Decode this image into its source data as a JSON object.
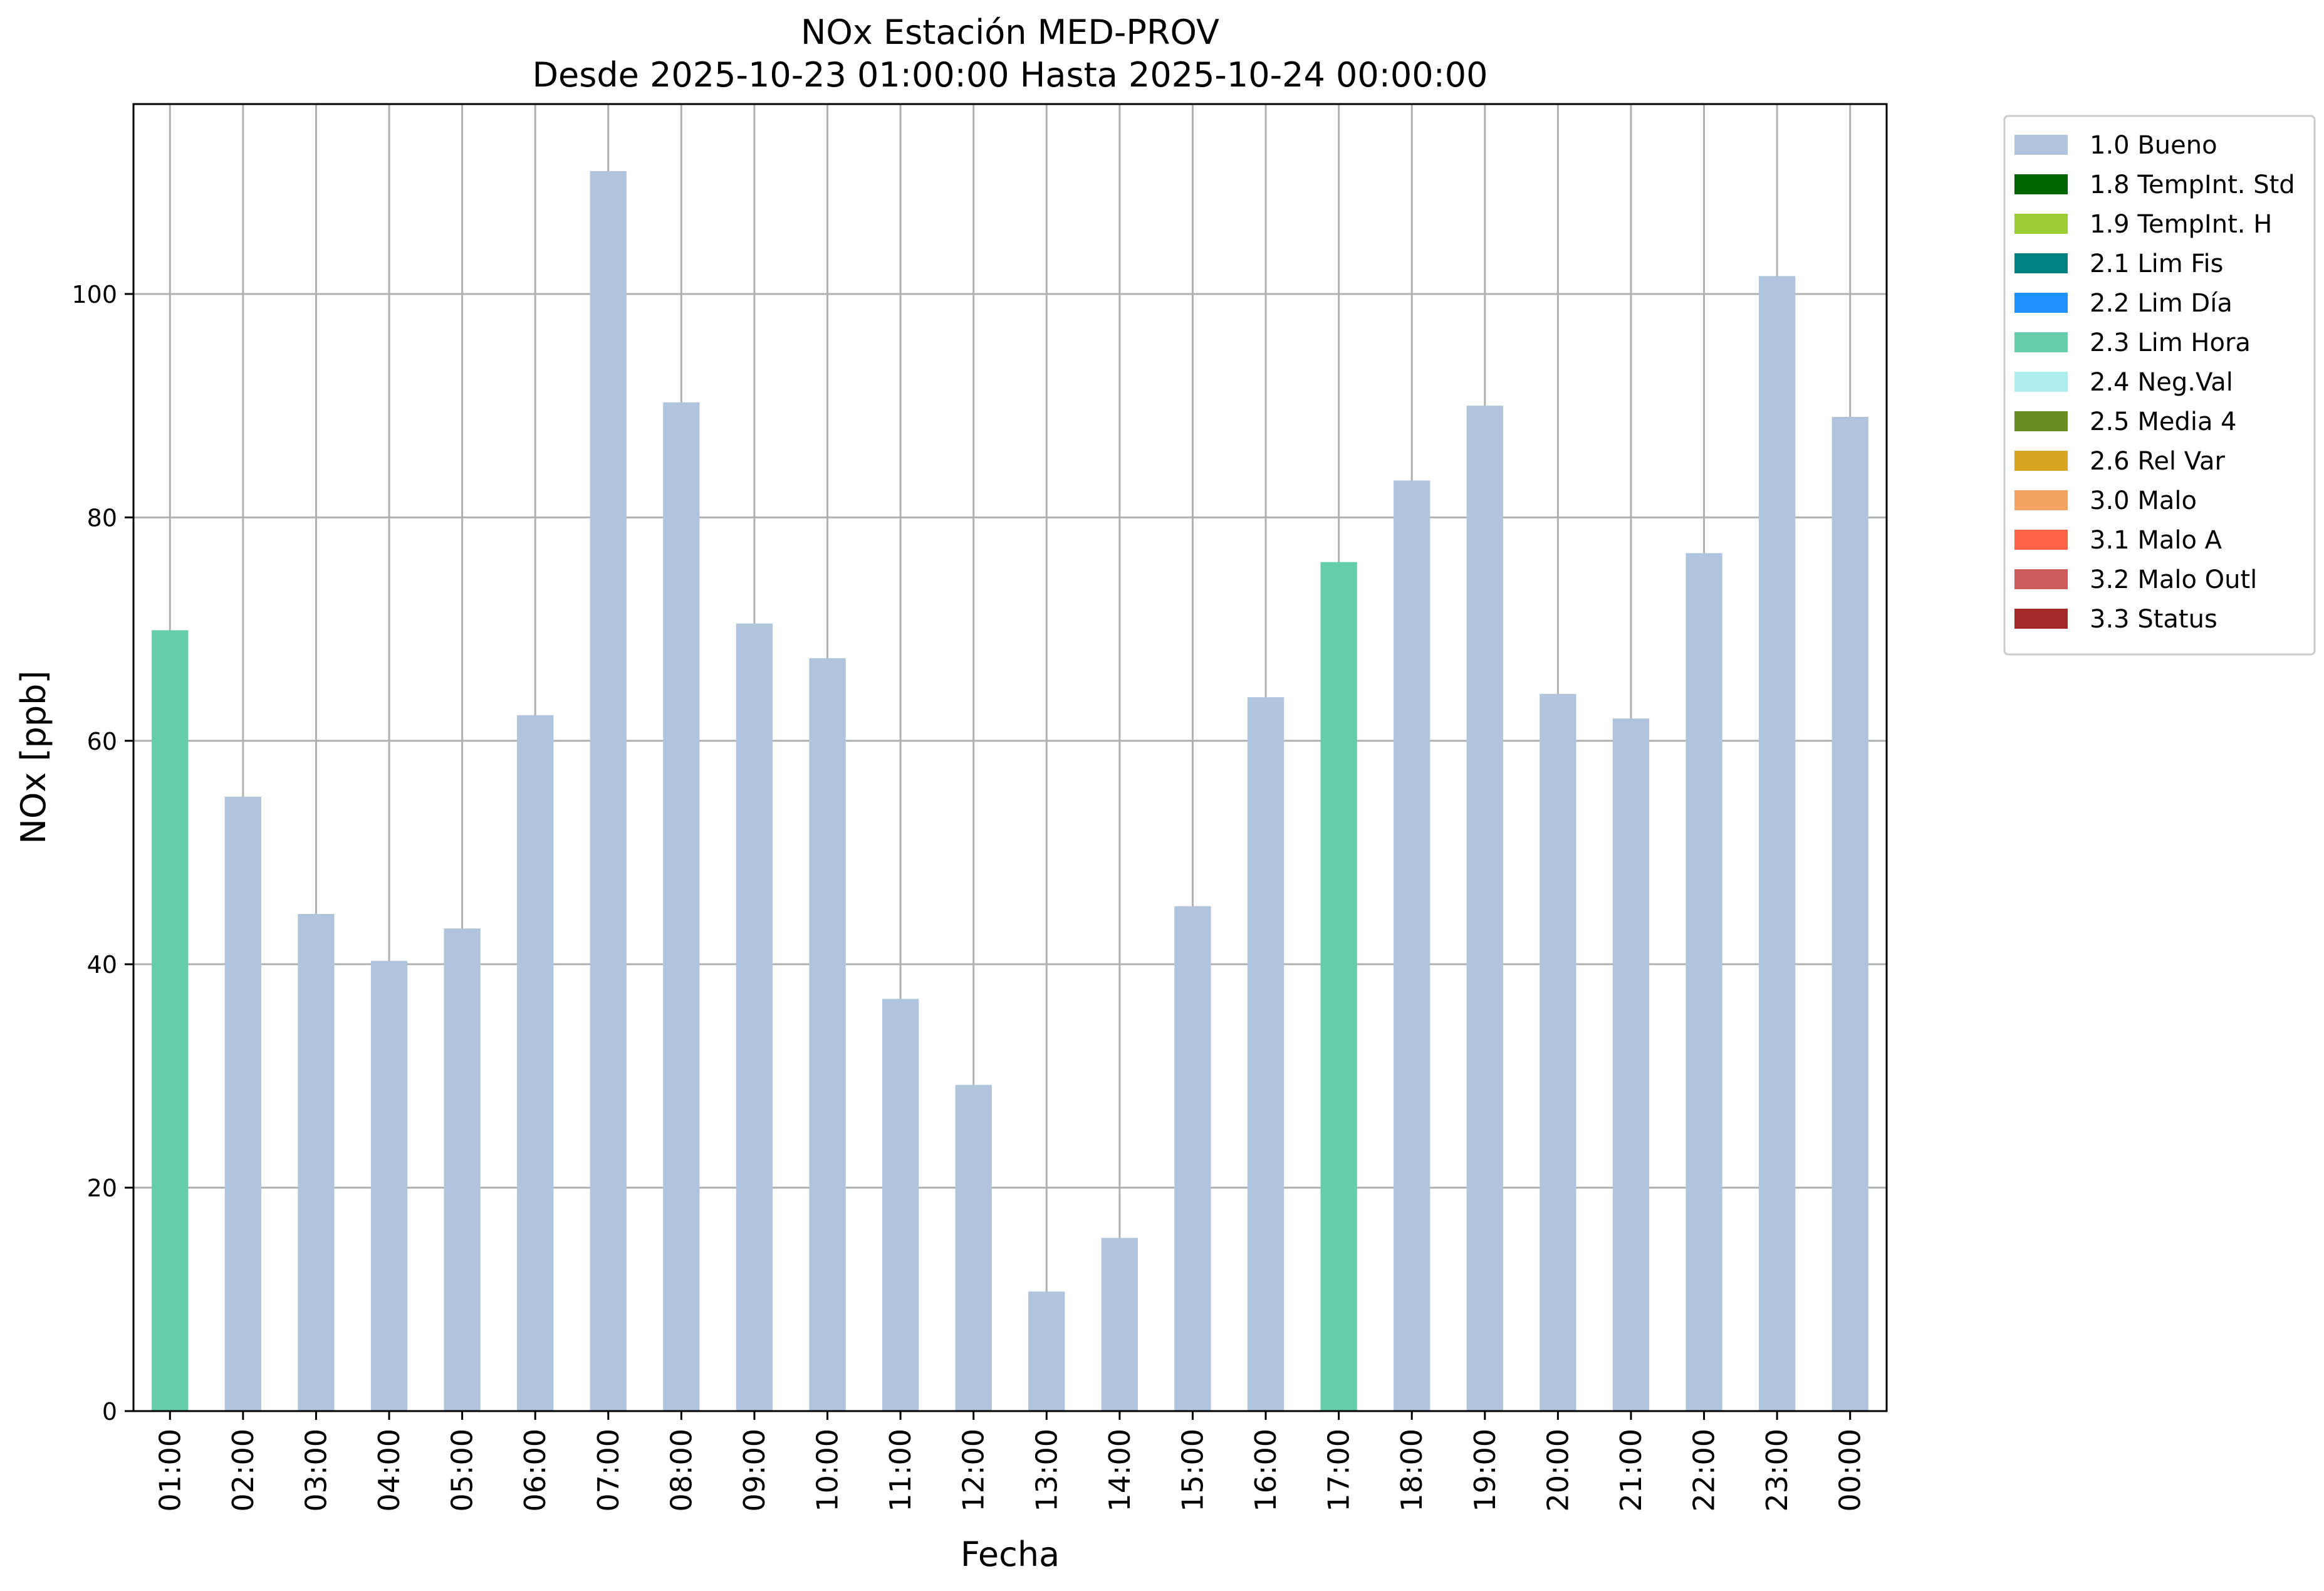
{
  "chart_data": {
    "type": "bar",
    "title": "NOx Estación MED-PROV",
    "subtitle": "Desde 2025-10-23 01:00:00 Hasta 2025-10-24 00:00:00",
    "xlabel": "Fecha",
    "ylabel": "NOx [ppb]",
    "ylim": [
      0,
      117
    ],
    "yticks": [
      0,
      20,
      40,
      60,
      80,
      100
    ],
    "grid": true,
    "legend_position": "outside-right-top",
    "categories": [
      "01:00",
      "02:00",
      "03:00",
      "04:00",
      "05:00",
      "06:00",
      "07:00",
      "08:00",
      "09:00",
      "10:00",
      "11:00",
      "12:00",
      "13:00",
      "14:00",
      "15:00",
      "16:00",
      "17:00",
      "18:00",
      "19:00",
      "20:00",
      "21:00",
      "22:00",
      "23:00",
      "00:00"
    ],
    "values": [
      69.9,
      55.0,
      44.5,
      40.3,
      43.2,
      62.3,
      111.0,
      90.3,
      70.5,
      67.4,
      36.9,
      29.2,
      10.7,
      15.5,
      45.2,
      63.9,
      76.0,
      83.3,
      90.0,
      64.2,
      62.0,
      76.8,
      101.6,
      89.0
    ],
    "flags": [
      "2.3 Lim Hora",
      "1.0 Bueno",
      "1.0 Bueno",
      "1.0 Bueno",
      "1.0 Bueno",
      "1.0 Bueno",
      "1.0 Bueno",
      "1.0 Bueno",
      "1.0 Bueno",
      "1.0 Bueno",
      "1.0 Bueno",
      "1.0 Bueno",
      "1.0 Bueno",
      "1.0 Bueno",
      "1.0 Bueno",
      "1.0 Bueno",
      "2.3 Lim Hora",
      "1.0 Bueno",
      "1.0 Bueno",
      "1.0 Bueno",
      "1.0 Bueno",
      "1.0 Bueno",
      "1.0 Bueno",
      "1.0 Bueno"
    ],
    "legend": [
      {
        "label": "1.0 Bueno",
        "color": "#b0c4de"
      },
      {
        "label": "1.8 TempInt. Std",
        "color": "#006400"
      },
      {
        "label": "1.9 TempInt. H",
        "color": "#9acd32"
      },
      {
        "label": "2.1 Lim Fis",
        "color": "#008080"
      },
      {
        "label": "2.2 Lim Día",
        "color": "#1e90ff"
      },
      {
        "label": "2.3 Lim Hora",
        "color": "#66cdaa"
      },
      {
        "label": "2.4 Neg.Val",
        "color": "#afeeee"
      },
      {
        "label": "2.5 Media 4",
        "color": "#6b8e23"
      },
      {
        "label": "2.6 Rel Var",
        "color": "#daa520"
      },
      {
        "label": "3.0 Malo",
        "color": "#f4a460"
      },
      {
        "label": "3.1 Malo A",
        "color": "#ff6347"
      },
      {
        "label": "3.2 Malo Outl",
        "color": "#cd5c5c"
      },
      {
        "label": "3.3 Status",
        "color": "#a52a2a"
      }
    ]
  }
}
